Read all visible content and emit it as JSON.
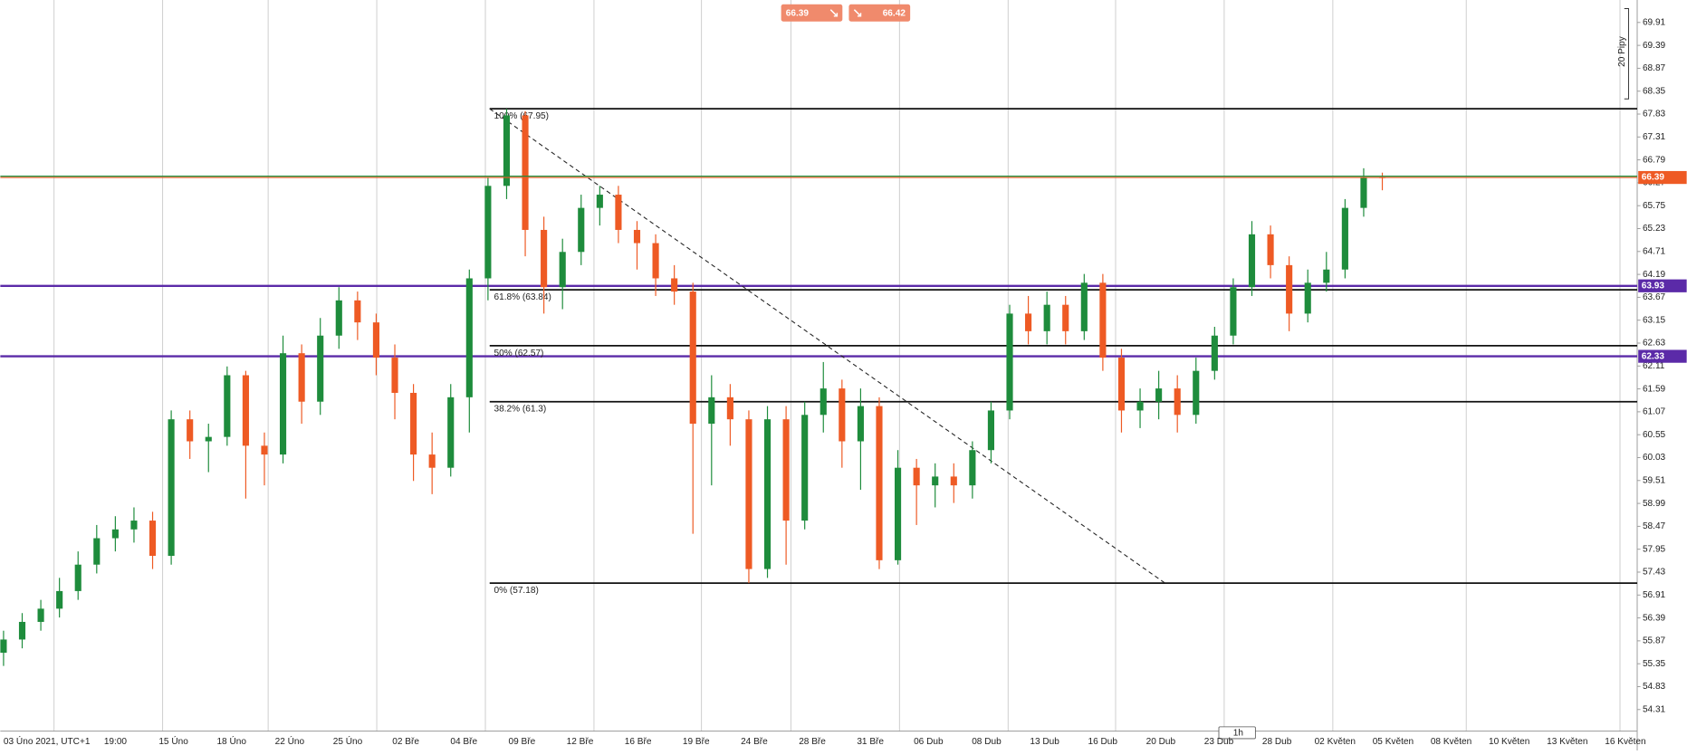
{
  "chart_data": {
    "type": "candlestick",
    "x_labels": [
      "03 Úno 2021, UTC+1",
      "19:00",
      "15 Úno",
      "18 Úno",
      "22 Úno",
      "25 Úno",
      "02 Bře",
      "04 Bře",
      "09 Bře",
      "12 Bře",
      "16 Bře",
      "19 Bře",
      "24 Bře",
      "28 Bře",
      "31 Bře",
      "06 Dub",
      "08 Dub",
      "13 Dub",
      "16 Dub",
      "20 Dub",
      "23 Dub",
      "28 Dub",
      "02 Květen",
      "05 Květen",
      "08 Květen",
      "10 Květen",
      "13 Květen",
      "16 Květen"
    ],
    "open": [
      55.6,
      55.9,
      56.3,
      56.6,
      57.0,
      57.6,
      58.2,
      58.4,
      58.6,
      57.8,
      60.9,
      60.4,
      60.5,
      61.9,
      60.3,
      60.1,
      62.4,
      61.3,
      62.8,
      63.6,
      63.1,
      62.3,
      61.5,
      60.1,
      59.8,
      61.4,
      64.1,
      66.2,
      67.8,
      65.2,
      63.9,
      64.7,
      65.7,
      66.0,
      65.2,
      64.9,
      64.1,
      63.8,
      60.8,
      61.4,
      60.9,
      57.5,
      60.9,
      58.6,
      61.0,
      61.6,
      60.4,
      61.2,
      57.7,
      59.8,
      59.4,
      59.6,
      59.4,
      60.2,
      61.1,
      63.3,
      62.9,
      63.5,
      62.9,
      64.0,
      62.3,
      61.1,
      61.3,
      61.6,
      61.0,
      62.0,
      62.8,
      63.9,
      65.1,
      64.4,
      63.3,
      64.0,
      64.3,
      65.7,
      66.4
    ],
    "high": [
      56.1,
      56.5,
      56.8,
      57.3,
      57.9,
      58.5,
      58.7,
      58.9,
      58.8,
      61.1,
      61.1,
      60.8,
      62.1,
      62.0,
      60.6,
      62.8,
      62.6,
      63.2,
      63.9,
      63.8,
      63.3,
      62.6,
      61.7,
      60.6,
      61.7,
      64.3,
      66.4,
      67.95,
      67.9,
      65.5,
      65.0,
      66.0,
      66.2,
      66.2,
      65.4,
      65.1,
      64.4,
      64.0,
      61.9,
      61.7,
      61.1,
      61.2,
      61.2,
      61.3,
      62.2,
      61.8,
      61.6,
      61.4,
      60.2,
      60.0,
      59.9,
      59.9,
      60.4,
      61.3,
      63.5,
      63.7,
      63.8,
      63.7,
      64.2,
      64.2,
      62.5,
      61.6,
      62.0,
      61.9,
      62.3,
      63.0,
      64.1,
      65.4,
      65.3,
      64.6,
      64.3,
      64.7,
      65.9,
      66.6,
      66.5
    ],
    "low": [
      55.3,
      55.7,
      56.1,
      56.4,
      56.8,
      57.4,
      57.9,
      58.1,
      57.5,
      57.6,
      60.0,
      59.7,
      60.3,
      59.1,
      59.4,
      59.9,
      60.8,
      61.0,
      62.5,
      62.7,
      61.9,
      60.9,
      59.5,
      59.2,
      59.6,
      60.6,
      63.6,
      65.9,
      64.6,
      63.3,
      63.4,
      64.4,
      65.3,
      64.9,
      64.3,
      63.7,
      63.5,
      58.3,
      59.4,
      60.3,
      57.18,
      57.3,
      57.6,
      58.4,
      60.6,
      59.8,
      59.3,
      57.5,
      57.6,
      58.5,
      58.9,
      59.0,
      59.1,
      59.9,
      60.9,
      62.6,
      62.6,
      62.6,
      62.7,
      62.0,
      60.6,
      60.7,
      60.9,
      60.6,
      60.8,
      61.8,
      62.6,
      63.7,
      64.1,
      62.9,
      63.1,
      63.8,
      64.1,
      65.5,
      66.1
    ],
    "close": [
      55.9,
      56.3,
      56.6,
      57.0,
      57.6,
      58.2,
      58.4,
      58.6,
      57.8,
      60.9,
      60.4,
      60.5,
      61.9,
      60.3,
      60.1,
      62.4,
      61.3,
      62.8,
      63.6,
      63.1,
      62.3,
      61.5,
      60.1,
      59.8,
      61.4,
      64.1,
      66.2,
      67.8,
      65.2,
      63.9,
      64.7,
      65.7,
      66.0,
      65.2,
      64.9,
      64.1,
      63.8,
      60.8,
      61.4,
      60.9,
      57.5,
      60.9,
      58.6,
      61.0,
      61.6,
      60.4,
      61.2,
      57.7,
      59.8,
      59.4,
      59.6,
      59.4,
      60.2,
      61.1,
      63.3,
      62.9,
      63.5,
      62.9,
      64.0,
      62.3,
      61.1,
      61.3,
      61.6,
      61.0,
      62.0,
      62.8,
      63.9,
      65.1,
      64.4,
      63.3,
      64.0,
      64.3,
      65.7,
      66.4,
      66.39
    ],
    "up_color": "#1e8c3c",
    "down_color": "#ee5a24",
    "ylim": [
      53.82,
      70.42
    ],
    "yticks": [
      69.91,
      69.39,
      68.87,
      68.35,
      67.83,
      67.31,
      66.79,
      66.27,
      65.75,
      65.23,
      64.71,
      64.19,
      63.67,
      63.15,
      62.63,
      62.11,
      61.59,
      61.07,
      60.55,
      60.03,
      59.51,
      58.99,
      58.47,
      57.95,
      57.43,
      56.91,
      56.39,
      55.87,
      55.35,
      54.83,
      54.31
    ],
    "fib_levels": [
      {
        "value": 67.95,
        "label": "100% (67.95)"
      },
      {
        "value": 63.84,
        "label": "61.8% (63.84)"
      },
      {
        "value": 62.57,
        "label": "50% (62.57)"
      },
      {
        "value": 61.3,
        "label": "38.2% (61.3)"
      },
      {
        "value": 57.18,
        "label": "0% (57.18)"
      }
    ],
    "hlines": [
      {
        "value": 63.93,
        "label": "63.93",
        "color": "#5b2aa8"
      },
      {
        "value": 62.33,
        "label": "62.33",
        "color": "#5b2aa8"
      }
    ],
    "bid": {
      "value": 66.39,
      "label": "66.39",
      "color": "#ee5a24"
    },
    "ask": {
      "value": 66.42,
      "label": "66.42",
      "color": "#1e8c3c"
    },
    "pip_scale": "20 Pipy",
    "timeframe": "1h"
  }
}
